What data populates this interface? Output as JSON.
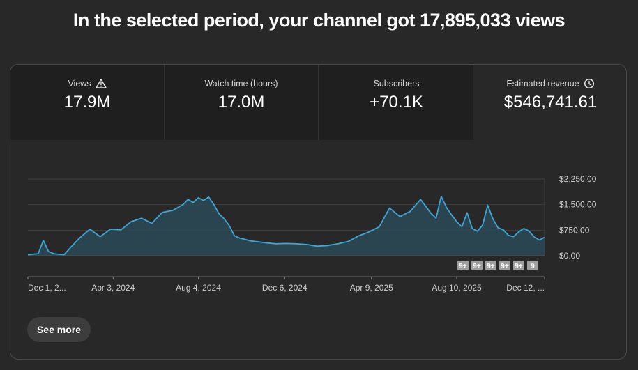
{
  "headline": "In the selected period, your channel got 17,895,033 views",
  "tabs": [
    {
      "label": "Views",
      "value": "17.9M",
      "icon": "warning-icon"
    },
    {
      "label": "Watch time (hours)",
      "value": "17.0M"
    },
    {
      "label": "Subscribers",
      "value": "+70.1K"
    },
    {
      "label": "Estimated revenue",
      "value": "$546,741.61",
      "icon": "clock-icon",
      "active": true
    }
  ],
  "see_more": "See more",
  "colors": {
    "line": "#3ea6d8",
    "area": "#2c4a57",
    "grid": "#3f3f3f"
  },
  "chart_data": {
    "type": "area",
    "series": [
      {
        "name": "Estimated revenue"
      }
    ],
    "y_ticks": [
      "$2,250.00",
      "$1,500.00",
      "$750.00",
      "$0.00"
    ],
    "y_tick_values": [
      2250,
      1500,
      750,
      0
    ],
    "ylim": [
      0,
      2250
    ],
    "x_tick_labels": [
      "Dec 1, 2...",
      "Apr 3, 2024",
      "Aug 4, 2024",
      "Dec 6, 2024",
      "Apr 9, 2025",
      "Aug 10, 2025",
      "Dec 12, ..."
    ],
    "x_tick_fractions": [
      0.0,
      0.165,
      0.33,
      0.497,
      0.665,
      0.83,
      1.0
    ],
    "badges": [
      "9+",
      "9+",
      "9+",
      "9+",
      "9+",
      "9"
    ],
    "x": [
      0.0,
      0.02,
      0.03,
      0.04,
      0.05,
      0.06,
      0.07,
      0.085,
      0.1,
      0.12,
      0.14,
      0.16,
      0.18,
      0.2,
      0.22,
      0.24,
      0.26,
      0.28,
      0.3,
      0.31,
      0.32,
      0.33,
      0.34,
      0.35,
      0.36,
      0.37,
      0.38,
      0.39,
      0.4,
      0.41,
      0.42,
      0.43,
      0.44,
      0.46,
      0.48,
      0.5,
      0.52,
      0.54,
      0.56,
      0.58,
      0.6,
      0.62,
      0.64,
      0.66,
      0.68,
      0.7,
      0.72,
      0.74,
      0.76,
      0.78,
      0.79,
      0.8,
      0.81,
      0.82,
      0.83,
      0.84,
      0.85,
      0.86,
      0.87,
      0.88,
      0.89,
      0.9,
      0.91,
      0.92,
      0.93,
      0.94,
      0.95,
      0.96,
      0.97,
      0.98,
      0.99,
      1.0
    ],
    "values": [
      30,
      60,
      450,
      120,
      60,
      40,
      30,
      280,
      520,
      780,
      560,
      780,
      760,
      1000,
      1100,
      950,
      1270,
      1330,
      1500,
      1650,
      1560,
      1700,
      1620,
      1720,
      1500,
      1230,
      1080,
      880,
      580,
      520,
      480,
      440,
      420,
      380,
      350,
      360,
      350,
      330,
      280,
      300,
      350,
      420,
      580,
      700,
      850,
      1400,
      1150,
      1300,
      1650,
      1250,
      1100,
      1740,
      1420,
      1200,
      1000,
      850,
      1260,
      800,
      720,
      900,
      1480,
      1080,
      820,
      760,
      600,
      560,
      700,
      800,
      720,
      550,
      460,
      540
    ]
  }
}
